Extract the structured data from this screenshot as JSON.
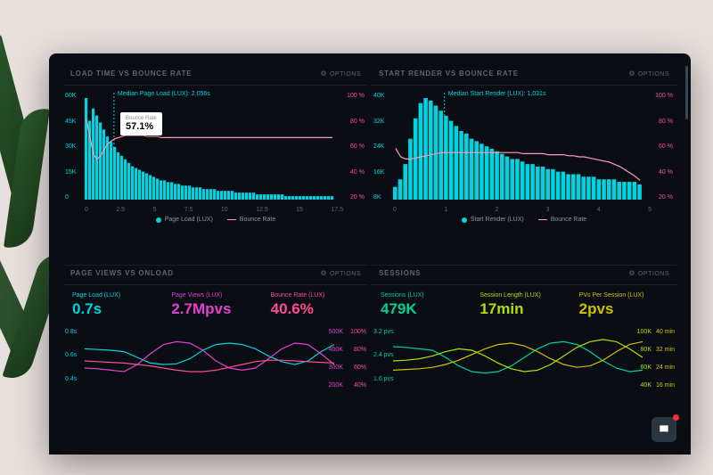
{
  "colors": {
    "bg": "#0a0e14",
    "cyan": "#00d4e0",
    "pink": "#ff4d8d",
    "pinkLine": "#ff9db8",
    "mag": "#e040d0",
    "teal": "#00d090",
    "lime": "#b0e000",
    "yellow": "#d0c000",
    "axis": "#5a6570",
    "grid": "#1a2028"
  },
  "panel1": {
    "title": "LOAD TIME VS BOUNCE RATE",
    "options": "OPTIONS",
    "median": "Median Page Load (LUX): 2.056s",
    "medianX": 2.056,
    "tooltip": {
      "label": "Bounce Rate",
      "value": "57.1%",
      "x": 2.5
    },
    "yL": {
      "ticks": [
        "60K",
        "45K",
        "30K",
        "15K",
        "0"
      ],
      "max": 60000
    },
    "yR": {
      "ticks": [
        "100 %",
        "80 %",
        "60 %",
        "40 %",
        "20 %"
      ],
      "max": 100
    },
    "x": {
      "ticks": [
        "0",
        "2.5",
        "5",
        "7.5",
        "10",
        "12.5",
        "15",
        "17.5"
      ],
      "max": 17.5
    },
    "bars": [
      58,
      45,
      52,
      48,
      44,
      40,
      36,
      33,
      30,
      27,
      25,
      23,
      21,
      19,
      18,
      17,
      16,
      15,
      14,
      13,
      12,
      11,
      11,
      10,
      10,
      9,
      9,
      8,
      8,
      8,
      7,
      7,
      7,
      6,
      6,
      6,
      6,
      5,
      5,
      5,
      5,
      5,
      4,
      4,
      4,
      4,
      4,
      4,
      3,
      3,
      3,
      3,
      3,
      3,
      3,
      3,
      2,
      2,
      2,
      2,
      2,
      2,
      2,
      2,
      2,
      2,
      2,
      2,
      2,
      2
    ],
    "line": [
      75,
      58,
      42,
      38,
      41,
      47,
      52,
      55,
      57,
      58,
      59,
      60,
      60,
      60,
      60,
      60,
      60,
      59,
      59,
      59,
      59,
      58,
      58,
      58,
      58,
      58,
      58,
      58,
      58,
      58,
      58,
      58,
      58,
      58,
      58,
      58,
      58,
      58,
      58,
      58,
      58,
      58,
      58,
      58,
      58,
      58,
      58,
      58,
      58,
      58,
      58,
      58,
      58,
      58,
      58,
      58,
      58,
      58,
      58,
      58,
      58,
      58,
      58,
      58,
      58,
      58,
      58,
      58,
      58,
      58
    ],
    "legend": {
      "bar": "Page Load (LUX)",
      "line": "Bounce Rate"
    }
  },
  "panel2": {
    "title": "START RENDER VS BOUNCE RATE",
    "options": "OPTIONS",
    "median": "Median Start Render (LUX): 1.031s",
    "medianX": 1.031,
    "yL": {
      "ticks": [
        "40K",
        "32K",
        "24K",
        "16K",
        "8K"
      ],
      "max": 40000
    },
    "yR": {
      "ticks": [
        "100 %",
        "80 %",
        "60 %",
        "40 %",
        "20 %"
      ],
      "max": 100
    },
    "x": {
      "ticks": [
        "0",
        "1",
        "2",
        "3",
        "4",
        "5"
      ],
      "max": 5
    },
    "bars": [
      5,
      8,
      14,
      24,
      32,
      38,
      40,
      39,
      37,
      35,
      33,
      31,
      29,
      27,
      26,
      24,
      23,
      22,
      21,
      20,
      19,
      18,
      17,
      16,
      16,
      15,
      14,
      14,
      13,
      13,
      12,
      12,
      11,
      11,
      10,
      10,
      10,
      9,
      9,
      9,
      8,
      8,
      8,
      8,
      7,
      7,
      7,
      7,
      6
    ],
    "line": [
      48,
      40,
      38,
      38,
      39,
      40,
      41,
      42,
      43,
      44,
      44,
      44,
      44,
      44,
      44,
      44,
      44,
      44,
      44,
      44,
      44,
      44,
      44,
      44,
      44,
      43,
      43,
      43,
      43,
      43,
      42,
      42,
      42,
      42,
      41,
      41,
      40,
      40,
      39,
      38,
      37,
      36,
      35,
      33,
      31,
      28,
      25,
      22,
      18
    ],
    "legend": {
      "bar": "Start Render (LUX)",
      "line": "Bounce Rate"
    }
  },
  "panel3": {
    "title": "PAGE VIEWS VS ONLOAD",
    "options": "OPTIONS",
    "metrics": [
      {
        "label": "Page Load (LUX)",
        "value": "0.7s",
        "cls": "mc-cyan"
      },
      {
        "label": "Page Views (LUX)",
        "value": "2.7Mpvs",
        "cls": "mc-mag"
      },
      {
        "label": "Bounce Rate (LUX)",
        "value": "40.6%",
        "cls": "mc-pink"
      }
    ],
    "yL": {
      "ticks": [
        "0.8s",
        "0.6s",
        "0.4s"
      ],
      "color": "#00d4e0"
    },
    "yR1": {
      "ticks": [
        "500K",
        "400K",
        "300K",
        "200K"
      ],
      "color": "#e040d0"
    },
    "yR2": {
      "ticks": [
        "100%",
        "80%",
        "60%",
        "40%"
      ],
      "color": "#ff4d8d"
    },
    "lines": {
      "cyan": [
        0.72,
        0.71,
        0.7,
        0.68,
        0.6,
        0.52,
        0.5,
        0.51,
        0.58,
        0.7,
        0.78,
        0.8,
        0.78,
        0.72,
        0.62,
        0.54,
        0.5,
        0.55,
        0.68,
        0.78
      ],
      "mag": [
        0.45,
        0.44,
        0.42,
        0.4,
        0.5,
        0.65,
        0.78,
        0.82,
        0.8,
        0.7,
        0.55,
        0.45,
        0.42,
        0.45,
        0.58,
        0.72,
        0.8,
        0.78,
        0.65,
        0.5
      ],
      "pink": [
        0.55,
        0.54,
        0.53,
        0.52,
        0.5,
        0.48,
        0.45,
        0.42,
        0.4,
        0.4,
        0.42,
        0.46,
        0.5,
        0.54,
        0.56,
        0.56,
        0.55,
        0.54,
        0.53,
        0.52
      ]
    }
  },
  "panel4": {
    "title": "SESSIONS",
    "options": "OPTIONS",
    "metrics": [
      {
        "label": "Sessions (LUX)",
        "value": "479K",
        "cls": "mc-teal"
      },
      {
        "label": "Session Length (LUX)",
        "value": "17min",
        "cls": "mc-lime"
      },
      {
        "label": "PVs Per Session (LUX)",
        "value": "2pvs",
        "cls": "mc-yellow"
      }
    ],
    "yL": {
      "ticks": [
        "3.2 pvs",
        "2.4 pvs",
        "1.6 pvs"
      ],
      "color": "#00d090"
    },
    "yR1": {
      "ticks": [
        "100K",
        "80K",
        "60K",
        "40K"
      ],
      "color": "#b0e000"
    },
    "yR2": {
      "ticks": [
        "40 min",
        "32 min",
        "24 min",
        "16 min"
      ],
      "color": "#d0c000"
    },
    "lines": {
      "teal": [
        0.75,
        0.74,
        0.72,
        0.7,
        0.6,
        0.48,
        0.4,
        0.38,
        0.4,
        0.48,
        0.6,
        0.72,
        0.8,
        0.82,
        0.78,
        0.68,
        0.55,
        0.45,
        0.4,
        0.42
      ],
      "lime": [
        0.55,
        0.56,
        0.58,
        0.62,
        0.68,
        0.72,
        0.7,
        0.62,
        0.52,
        0.44,
        0.4,
        0.42,
        0.5,
        0.62,
        0.74,
        0.82,
        0.85,
        0.82,
        0.72,
        0.6
      ],
      "yellow": [
        0.42,
        0.43,
        0.44,
        0.46,
        0.5,
        0.56,
        0.64,
        0.72,
        0.78,
        0.8,
        0.76,
        0.68,
        0.58,
        0.5,
        0.46,
        0.48,
        0.56,
        0.68,
        0.78,
        0.82
      ]
    }
  }
}
